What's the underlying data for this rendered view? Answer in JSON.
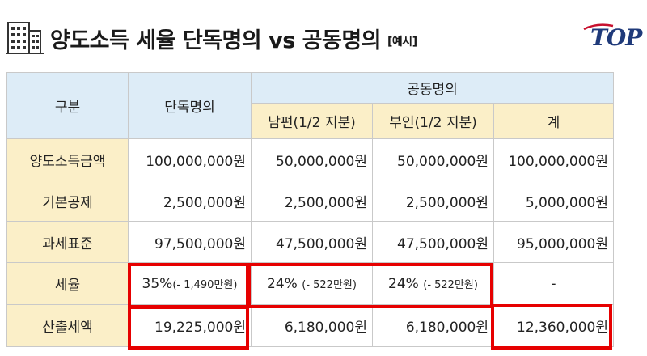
{
  "title": "양도소득 세율 단독명의 vs 공동명의",
  "title_note": "[예시]",
  "logo_text": "TOP",
  "table": {
    "col_category": "구분",
    "col_single": "단독명의",
    "col_joint": "공동명의",
    "col_husband": "남편(1/2 지분)",
    "col_wife": "부인(1/2 지분)",
    "col_total": "계",
    "rows": [
      {
        "label": "양도소득금액",
        "single": "100,000,000원",
        "husband": "50,000,000원",
        "wife": "50,000,000원",
        "total": "100,000,000원"
      },
      {
        "label": "기본공제",
        "single": "2,500,000원",
        "husband": "2,500,000원",
        "wife": "2,500,000원",
        "total": "5,000,000원"
      },
      {
        "label": "과세표준",
        "single": "97,500,000원",
        "husband": "47,500,000원",
        "wife": "47,500,000원",
        "total": "95,000,000원"
      },
      {
        "label": "세율",
        "single": "35%",
        "single_note": "(- 1,490만원)",
        "husband": "24%",
        "husband_note": "(- 522만원)",
        "wife": "24%",
        "wife_note": "(- 522만원)",
        "total": "-"
      },
      {
        "label": "산출세액",
        "single": "19,225,000원",
        "husband": "6,180,000원",
        "wife": "6,180,000원",
        "total": "12,360,000원"
      }
    ]
  },
  "colors": {
    "header_blue": "#ddecf7",
    "header_yellow": "#fbefc8",
    "highlight_red": "#e60000",
    "logo_blue": "#1f3a7a"
  }
}
